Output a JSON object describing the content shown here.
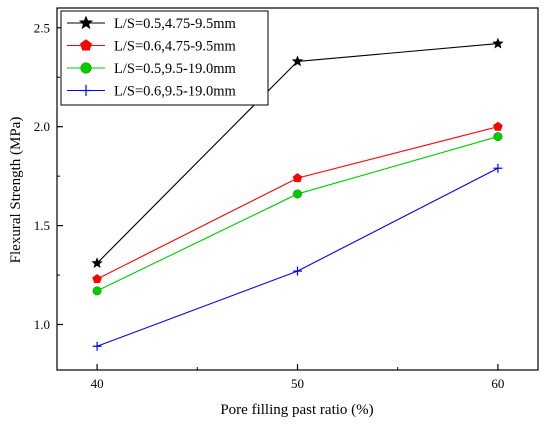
{
  "chart_data": {
    "type": "line",
    "xlabel": "Pore filling past ratio (%)",
    "ylabel": "Flexural Strength (MPa)",
    "x": [
      40,
      50,
      60
    ],
    "xlim": [
      38,
      62
    ],
    "ylim": [
      0.77,
      2.6
    ],
    "x_ticks": [
      40,
      50,
      60
    ],
    "y_ticks": [
      1.0,
      1.5,
      2.0,
      2.5
    ],
    "grid": false,
    "legend_position": "top-left",
    "series": [
      {
        "name": "L/S=0.5,4.75-9.5mm",
        "values": [
          1.31,
          2.33,
          2.42
        ],
        "color": "#000000",
        "marker": "star"
      },
      {
        "name": "L/S=0.6,4.75-9.5mm",
        "values": [
          1.23,
          1.74,
          2.0
        ],
        "color": "#ff0000",
        "marker": "pentagon"
      },
      {
        "name": "L/S=0.5,9.5-19.0mm",
        "values": [
          1.17,
          1.66,
          1.95
        ],
        "color": "#00cc00",
        "marker": "circle"
      },
      {
        "name": "L/S=0.6,9.5-19.0mm",
        "values": [
          0.89,
          1.27,
          1.79
        ],
        "color": "#0000ff",
        "marker": "plus"
      }
    ]
  }
}
